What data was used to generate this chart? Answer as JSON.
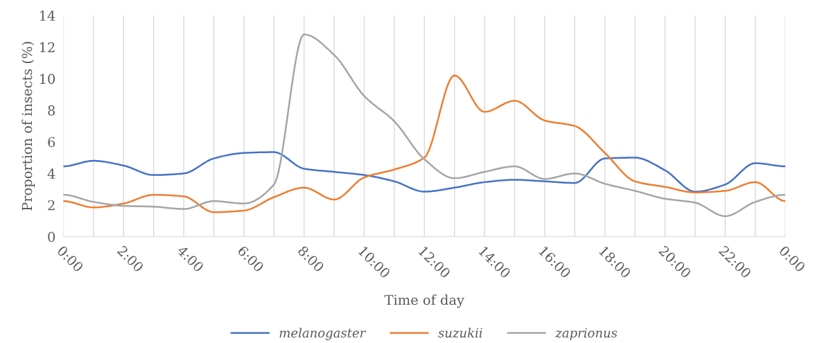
{
  "chart_data": {
    "type": "line",
    "xlabel": "Time of day",
    "ylabel": "Proportion of insects (%)",
    "x": [
      0,
      1,
      2,
      3,
      4,
      5,
      6,
      7,
      8,
      9,
      10,
      11,
      12,
      13,
      14,
      15,
      16,
      17,
      18,
      19,
      20,
      21,
      22,
      23,
      24
    ],
    "series": [
      {
        "name": "melanogaster",
        "color": "#4472c4",
        "values": [
          4.45,
          4.8,
          4.5,
          3.9,
          4.0,
          4.95,
          5.3,
          5.35,
          4.3,
          4.1,
          3.9,
          3.5,
          2.85,
          3.1,
          3.45,
          3.6,
          3.5,
          3.4,
          4.95,
          5.0,
          4.2,
          2.85,
          3.3,
          4.65,
          4.45
        ]
      },
      {
        "name": "suzukii",
        "color": "#ed7d31",
        "values": [
          2.25,
          1.85,
          2.1,
          2.65,
          2.55,
          1.55,
          1.65,
          2.5,
          3.1,
          2.35,
          3.75,
          4.25,
          5.0,
          10.2,
          7.9,
          8.6,
          7.35,
          7.0,
          5.3,
          3.5,
          3.15,
          2.8,
          2.9,
          3.45,
          2.25
        ]
      },
      {
        "name": "zaprionus",
        "color": "#a5a5a5",
        "values": [
          2.65,
          2.2,
          1.95,
          1.9,
          1.75,
          2.25,
          2.1,
          3.3,
          12.8,
          11.5,
          8.9,
          7.3,
          4.9,
          3.7,
          4.1,
          4.45,
          3.65,
          4.0,
          3.35,
          2.9,
          2.4,
          2.15,
          1.3,
          2.2,
          2.65
        ]
      }
    ],
    "xlim": [
      0,
      24
    ],
    "xticks": [
      {
        "value": 0,
        "label": "0:00"
      },
      {
        "value": 1,
        "label": null
      },
      {
        "value": 2,
        "label": "2:00"
      },
      {
        "value": 3,
        "label": null
      },
      {
        "value": 4,
        "label": "4:00"
      },
      {
        "value": 5,
        "label": null
      },
      {
        "value": 6,
        "label": "6:00"
      },
      {
        "value": 7,
        "label": null
      },
      {
        "value": 8,
        "label": "8:00"
      },
      {
        "value": 9,
        "label": null
      },
      {
        "value": 10,
        "label": "10:00"
      },
      {
        "value": 11,
        "label": null
      },
      {
        "value": 12,
        "label": "12:00"
      },
      {
        "value": 13,
        "label": null
      },
      {
        "value": 14,
        "label": "14:00"
      },
      {
        "value": 15,
        "label": null
      },
      {
        "value": 16,
        "label": "16:00"
      },
      {
        "value": 17,
        "label": null
      },
      {
        "value": 18,
        "label": "18:00"
      },
      {
        "value": 19,
        "label": null
      },
      {
        "value": 20,
        "label": "20:00"
      },
      {
        "value": 21,
        "label": null
      },
      {
        "value": 22,
        "label": "22:00"
      },
      {
        "value": 23,
        "label": null
      },
      {
        "value": 24,
        "label": "0:00"
      }
    ],
    "ylim": [
      0,
      14
    ],
    "yticks": [
      0,
      2,
      4,
      6,
      8,
      10,
      12,
      14
    ],
    "grid": "x",
    "legend": "bottom",
    "line_style": "solid",
    "marker": "none"
  }
}
